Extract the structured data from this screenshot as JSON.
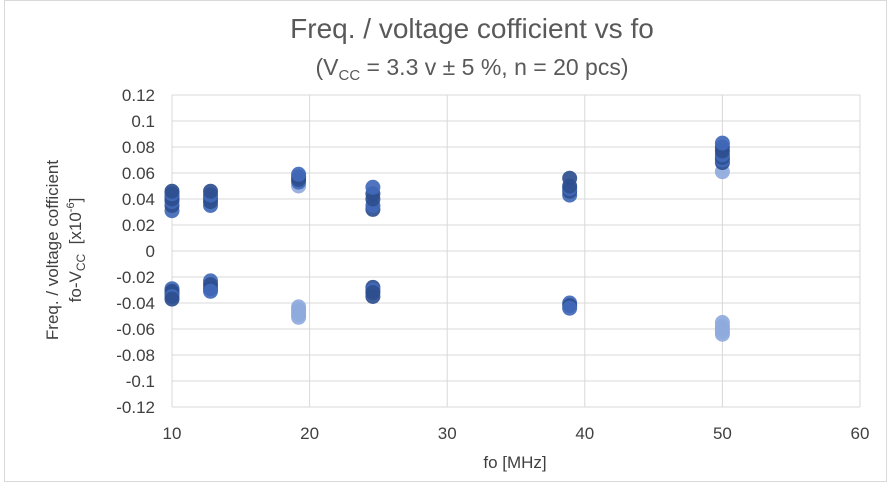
{
  "chart_data": {
    "type": "scatter",
    "title": "Freq. / voltage cofficient vs fo",
    "subtitle": {
      "prefix": "(V",
      "sub": "CC",
      "suffix": " = 3.3 v ± 5 %, n = 20 pcs)"
    },
    "xlabel": "fo [MHz]",
    "ylabel": {
      "line1": "Freq. / voltage cofficient",
      "line2_prefix": "fo-V",
      "line2_sub": "CC",
      "line2_mid": "  [x10",
      "line2_sup": "-6",
      "line2_suffix": "]"
    },
    "xlim": [
      10,
      60
    ],
    "ylim": [
      -0.12,
      0.12
    ],
    "x_ticks": [
      10,
      20,
      30,
      40,
      50,
      60
    ],
    "y_ticks": [
      0.12,
      0.1,
      0.08,
      0.06,
      0.04,
      0.02,
      0,
      -0.02,
      -0.04,
      -0.06,
      -0.08,
      -0.1,
      -0.12
    ],
    "y_tick_labels": [
      "0.12",
      "0.1",
      "0.08",
      "0.06",
      "0.04",
      "0.02",
      "0",
      "-0.02",
      "-0.04",
      "-0.06",
      "-0.08",
      "-0.1",
      "-0.12"
    ],
    "grid": true,
    "legend": "none",
    "points": [
      {
        "x": 10,
        "y": 0.031
      },
      {
        "x": 10,
        "y": 0.035
      },
      {
        "x": 10,
        "y": 0.038
      },
      {
        "x": 10,
        "y": 0.04
      },
      {
        "x": 10,
        "y": 0.042
      },
      {
        "x": 10,
        "y": 0.044
      },
      {
        "x": 10,
        "y": 0.046
      },
      {
        "x": 10,
        "y": -0.029
      },
      {
        "x": 10,
        "y": -0.031
      },
      {
        "x": 10,
        "y": -0.033
      },
      {
        "x": 10,
        "y": -0.035
      },
      {
        "x": 10,
        "y": -0.037
      },
      {
        "x": 12.8,
        "y": 0.035
      },
      {
        "x": 12.8,
        "y": 0.038
      },
      {
        "x": 12.8,
        "y": 0.041
      },
      {
        "x": 12.8,
        "y": 0.043
      },
      {
        "x": 12.8,
        "y": 0.046
      },
      {
        "x": 12.8,
        "y": -0.023
      },
      {
        "x": 12.8,
        "y": -0.026
      },
      {
        "x": 12.8,
        "y": -0.029
      },
      {
        "x": 12.8,
        "y": -0.031
      },
      {
        "x": 19.2,
        "y": 0.05
      },
      {
        "x": 19.2,
        "y": 0.053
      },
      {
        "x": 19.2,
        "y": 0.055
      },
      {
        "x": 19.2,
        "y": 0.057
      },
      {
        "x": 19.2,
        "y": 0.059
      },
      {
        "x": 19.2,
        "y": -0.043
      },
      {
        "x": 19.2,
        "y": -0.045
      },
      {
        "x": 19.2,
        "y": -0.047
      },
      {
        "x": 19.2,
        "y": -0.049
      },
      {
        "x": 19.2,
        "y": -0.051
      },
      {
        "x": 24.6,
        "y": 0.032
      },
      {
        "x": 24.6,
        "y": 0.035
      },
      {
        "x": 24.6,
        "y": 0.04
      },
      {
        "x": 24.6,
        "y": 0.044
      },
      {
        "x": 24.6,
        "y": 0.049
      },
      {
        "x": 24.6,
        "y": -0.028
      },
      {
        "x": 24.6,
        "y": -0.03
      },
      {
        "x": 24.6,
        "y": -0.032
      },
      {
        "x": 24.6,
        "y": -0.035
      },
      {
        "x": 38.9,
        "y": 0.043
      },
      {
        "x": 38.9,
        "y": 0.046
      },
      {
        "x": 38.9,
        "y": 0.048
      },
      {
        "x": 38.9,
        "y": 0.05
      },
      {
        "x": 38.9,
        "y": 0.056
      },
      {
        "x": 38.9,
        "y": -0.04
      },
      {
        "x": 38.9,
        "y": -0.042
      },
      {
        "x": 38.9,
        "y": -0.044
      },
      {
        "x": 50,
        "y": 0.061
      },
      {
        "x": 50,
        "y": 0.068
      },
      {
        "x": 50,
        "y": 0.07
      },
      {
        "x": 50,
        "y": 0.072
      },
      {
        "x": 50,
        "y": 0.074
      },
      {
        "x": 50,
        "y": 0.077
      },
      {
        "x": 50,
        "y": 0.08
      },
      {
        "x": 50,
        "y": 0.083
      },
      {
        "x": 50,
        "y": -0.055
      },
      {
        "x": 50,
        "y": -0.058
      },
      {
        "x": 50,
        "y": -0.06
      },
      {
        "x": 50,
        "y": -0.062
      },
      {
        "x": 50,
        "y": -0.064
      }
    ]
  },
  "colors": {
    "marker_dark": "#2e4f8f",
    "marker_mid": "#4169b8",
    "marker_light": "#8faadc",
    "grid": "#d9d9d9",
    "text": "#404040",
    "title": "#595959"
  }
}
